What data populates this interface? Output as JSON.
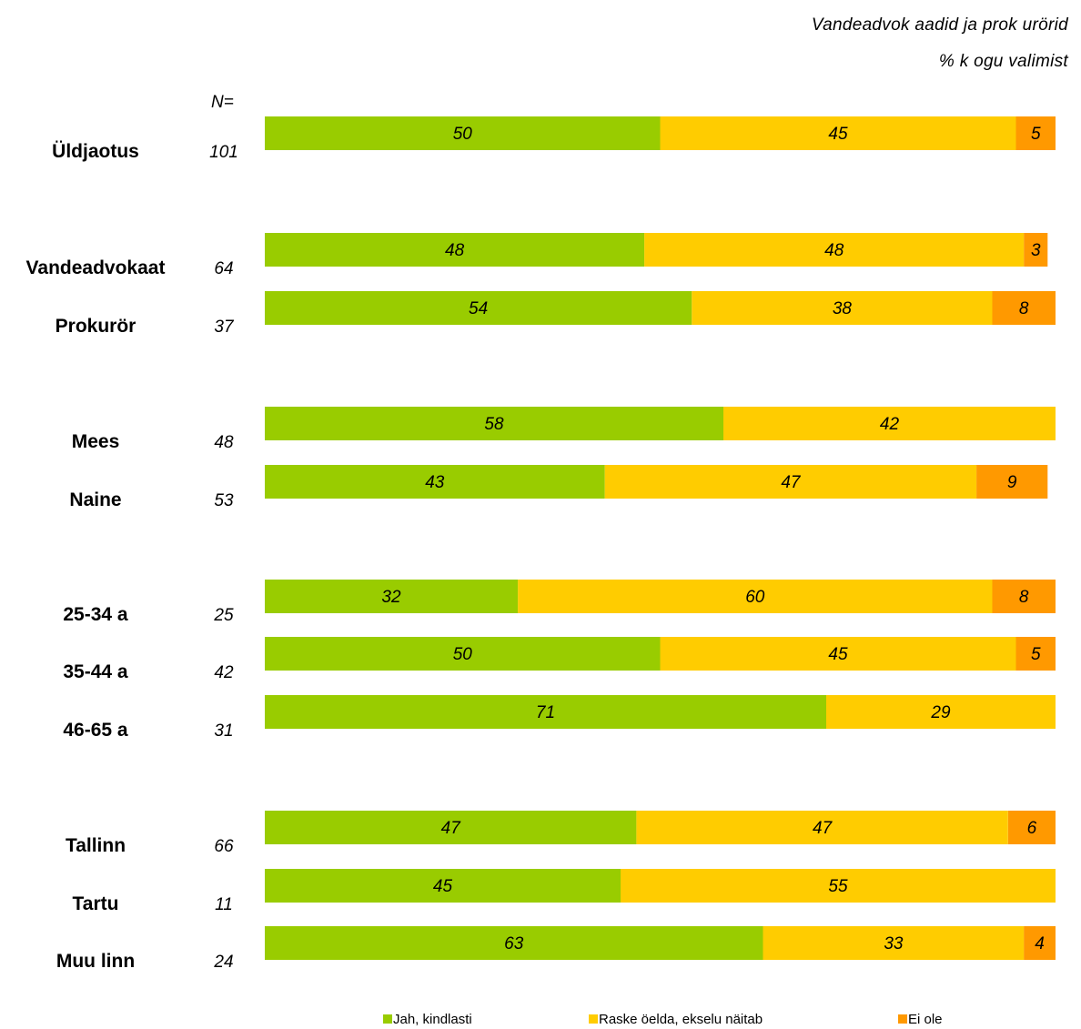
{
  "header": {
    "line1": "Vandeadvok aadid ja prok urörid",
    "line2": "% k ogu valimist"
  },
  "n_header": "N=",
  "chart_data": {
    "type": "bar",
    "orientation": "horizontal",
    "stacked": true,
    "categories": [
      "Üldjaotus",
      "Vandeadvokaat",
      "Prokurör",
      "Mees",
      "Naine",
      "25-34 a",
      "35-44 a",
      "46-65 a",
      "Tallinn",
      "Tartu",
      "Muu linn"
    ],
    "n_values": [
      "101",
      "64",
      "37",
      "48",
      "53",
      "25",
      "42",
      "31",
      "66",
      "11",
      "24"
    ],
    "groups": [
      [
        0
      ],
      [
        1,
        2
      ],
      [
        3,
        4
      ],
      [
        5,
        6,
        7
      ],
      [
        8,
        9,
        10
      ]
    ],
    "series": [
      {
        "name": "Jah, kindlasti",
        "color": "#99CC00",
        "values": [
          50,
          48,
          54,
          58,
          43,
          32,
          50,
          71,
          47,
          45,
          63
        ]
      },
      {
        "name": "Raske öelda, ekselu näitab",
        "color": "#FFCC00",
        "values": [
          45,
          48,
          38,
          42,
          47,
          60,
          45,
          29,
          47,
          55,
          33
        ]
      },
      {
        "name": "Ei ole",
        "color": "#FF9900",
        "values": [
          5,
          3,
          8,
          null,
          9,
          8,
          5,
          null,
          6,
          null,
          4
        ]
      }
    ],
    "xlim": [
      0,
      100
    ],
    "grid": false,
    "legend_position": "bottom"
  }
}
